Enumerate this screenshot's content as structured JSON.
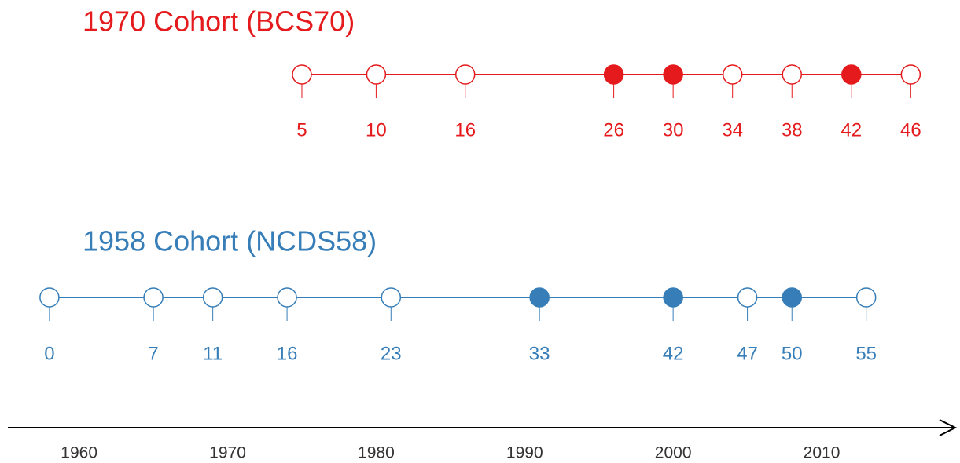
{
  "chart_data": {
    "type": "timeline",
    "xlim": [
      1955.2,
      2019
    ],
    "xticks": [
      1960,
      1970,
      1980,
      1990,
      2000,
      2010
    ],
    "series": [
      {
        "name": "1970 Cohort (BCS70)",
        "color": "#e41a1c",
        "x": [
          1975,
          1980,
          1986,
          1996,
          2000,
          2004,
          2008,
          2012,
          2016
        ],
        "values": [
          5,
          10,
          16,
          26,
          30,
          34,
          38,
          42,
          46
        ],
        "filled": [
          false,
          false,
          false,
          true,
          true,
          false,
          false,
          true,
          false
        ]
      },
      {
        "name": "1958 Cohort (NCDS58)",
        "color": "#377eb8",
        "x": [
          1958,
          1965,
          1969,
          1974,
          1981,
          1991,
          2000,
          2005,
          2008,
          2013
        ],
        "values": [
          0,
          7,
          11,
          16,
          23,
          33,
          42,
          47,
          50,
          55
        ],
        "filled": [
          false,
          false,
          false,
          false,
          false,
          true,
          true,
          false,
          true,
          false
        ]
      }
    ]
  }
}
